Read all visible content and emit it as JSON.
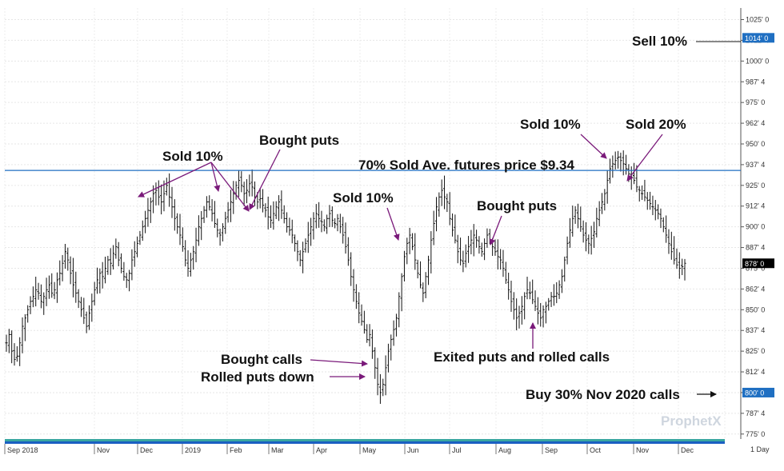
{
  "chart_data": {
    "type": "ohlc",
    "timeframe": "1 Day",
    "watermark": "ProphetX",
    "ylim": [
      772,
      1032
    ],
    "y_ticks": [
      {
        "v": 775,
        "label": "775' 0"
      },
      {
        "v": 787.5,
        "label": "787' 4"
      },
      {
        "v": 800,
        "label": "800' 0"
      },
      {
        "v": 812.5,
        "label": "812' 4"
      },
      {
        "v": 825,
        "label": "825' 0"
      },
      {
        "v": 837.5,
        "label": "837' 4"
      },
      {
        "v": 850,
        "label": "850' 0"
      },
      {
        "v": 862.5,
        "label": "862' 4"
      },
      {
        "v": 875,
        "label": "875' 0"
      },
      {
        "v": 887.5,
        "label": "887' 4"
      },
      {
        "v": 900,
        "label": "900' 0"
      },
      {
        "v": 912.5,
        "label": "912' 4"
      },
      {
        "v": 925,
        "label": "925' 0"
      },
      {
        "v": 937.5,
        "label": "937' 4"
      },
      {
        "v": 950,
        "label": "950' 0"
      },
      {
        "v": 962.5,
        "label": "962' 4"
      },
      {
        "v": 975,
        "label": "975' 0"
      },
      {
        "v": 987.5,
        "label": "987' 4"
      },
      {
        "v": 1000,
        "label": "1000' 0"
      },
      {
        "v": 1012.5,
        "label": "1012' 4"
      },
      {
        "v": 1025,
        "label": "1025' 0"
      }
    ],
    "x_ticks": [
      "Sep 2018",
      "Nov",
      "Dec",
      "2019",
      "Feb",
      "Mar",
      "Apr",
      "May",
      "Jun",
      "Jul",
      "Aug",
      "Sep",
      "Oct",
      "Nov",
      "Dec"
    ],
    "price_levels": [
      {
        "label": "1014' 0",
        "value": 1014,
        "color": "#1f6fc2"
      },
      {
        "label": "878' 0",
        "value": 878,
        "color": "#000000"
      },
      {
        "label": "800' 0",
        "value": 800,
        "color": "#1f6fc2"
      }
    ],
    "average_line": {
      "value": 934,
      "color": "#1f6fc2"
    },
    "series": [
      {
        "closes": [
          830,
          835,
          825,
          820,
          822,
          830,
          840,
          845,
          850,
          855,
          858,
          862,
          860,
          855,
          858,
          862,
          865,
          860,
          862,
          868,
          872,
          878,
          885,
          880,
          872,
          865,
          860,
          855,
          850,
          845,
          840,
          848,
          855,
          862,
          868,
          872,
          870,
          875,
          880,
          878,
          884,
          888,
          880,
          875,
          870,
          868,
          872,
          880,
          885,
          890,
          895,
          900,
          905,
          910,
          915,
          920,
          922,
          918,
          915,
          920,
          925,
          918,
          912,
          905,
          900,
          895,
          888,
          880,
          875,
          880,
          885,
          892,
          900,
          905,
          910,
          915,
          912,
          908,
          902,
          898,
          895,
          900,
          905,
          910,
          915,
          920,
          925,
          928,
          925,
          920,
          922,
          926,
          924,
          918,
          915,
          917,
          913,
          910,
          906,
          904,
          908,
          912,
          915,
          910,
          905,
          900,
          898,
          895,
          890,
          885,
          880,
          885,
          890,
          895,
          900,
          905,
          908,
          905,
          903,
          900,
          905,
          908,
          904,
          902,
          905,
          900,
          895,
          888,
          880,
          870,
          862,
          855,
          848,
          843,
          838,
          832,
          835,
          825,
          815,
          805,
          800,
          805,
          815,
          825,
          832,
          838,
          845,
          858,
          870,
          882,
          890,
          895,
          888,
          880,
          872,
          865,
          860,
          870,
          880,
          892,
          902,
          912,
          918,
          922,
          918,
          915,
          905,
          898,
          892,
          885,
          880,
          878,
          884,
          888,
          892,
          895,
          892,
          888,
          885,
          890,
          895,
          892,
          888,
          885,
          882,
          880,
          875,
          868,
          862,
          855,
          850,
          845,
          848,
          852,
          858,
          862,
          860,
          856,
          852,
          848,
          845,
          850,
          852,
          855,
          858,
          858,
          860,
          865,
          870,
          880,
          890,
          898,
          905,
          910,
          905,
          900,
          895,
          892,
          890,
          893,
          897,
          905,
          910,
          915,
          920,
          928,
          935,
          938,
          940,
          942,
          940,
          938,
          935,
          932,
          930,
          928,
          924,
          922,
          920,
          918,
          916,
          914,
          912,
          910,
          908,
          905,
          900,
          895,
          890,
          885,
          880,
          877,
          875,
          876,
          878
        ]
      }
    ],
    "annotations": [
      {
        "text": "Sold 10%"
      },
      {
        "text": "Bought puts"
      },
      {
        "text": "70% Sold Ave. futures price $9.34"
      },
      {
        "text": "Sold 10%"
      },
      {
        "text": "Bought puts"
      },
      {
        "text": "Sold 10%"
      },
      {
        "text": "Sold 20%"
      },
      {
        "text": "Sell 10%"
      },
      {
        "text": "Bought calls"
      },
      {
        "text": "Rolled puts down"
      },
      {
        "text": "Exited puts and rolled calls"
      },
      {
        "text": "Buy 30% Nov 2020 calls"
      }
    ]
  }
}
